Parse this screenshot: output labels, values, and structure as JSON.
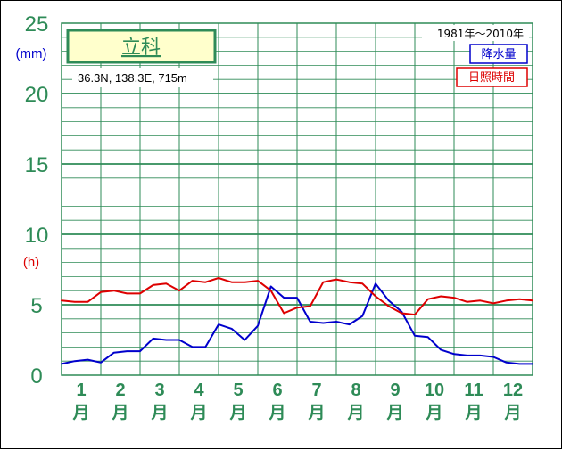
{
  "chart_data": {
    "type": "line",
    "title": "立科",
    "location": "36.3N,  138.3E,  715m",
    "period": "1981年〜2010年",
    "y_ticks": [
      "0",
      "5",
      "10",
      "15",
      "20",
      "25"
    ],
    "y_unit_precip": "(mm)",
    "y_unit_sun": "(h)",
    "ylim": [
      0,
      25
    ],
    "months": [
      {
        "num": "1",
        "kanji": "月"
      },
      {
        "num": "2",
        "kanji": "月"
      },
      {
        "num": "3",
        "kanji": "月"
      },
      {
        "num": "4",
        "kanji": "月"
      },
      {
        "num": "5",
        "kanji": "月"
      },
      {
        "num": "6",
        "kanji": "月"
      },
      {
        "num": "7",
        "kanji": "月"
      },
      {
        "num": "8",
        "kanji": "月"
      },
      {
        "num": "9",
        "kanji": "月"
      },
      {
        "num": "10",
        "kanji": "月"
      },
      {
        "num": "11",
        "kanji": "月"
      },
      {
        "num": "12",
        "kanji": "月"
      }
    ],
    "x": [
      0,
      1,
      2,
      3,
      4,
      5,
      6,
      7,
      8,
      9,
      10,
      11,
      12,
      13,
      14,
      15,
      16,
      17,
      18,
      19,
      20,
      21,
      22,
      23,
      24,
      25,
      26,
      27,
      28,
      29,
      30,
      31,
      32,
      33,
      34,
      35,
      36
    ],
    "series": [
      {
        "name": "降水量",
        "color": "#0000cc",
        "values": [
          0.8,
          1.0,
          1.1,
          0.9,
          1.6,
          1.7,
          1.7,
          2.6,
          2.5,
          2.5,
          2.0,
          2.0,
          3.6,
          3.3,
          2.5,
          3.5,
          6.3,
          5.5,
          5.5,
          3.8,
          3.7,
          3.8,
          3.6,
          4.2,
          6.5,
          5.3,
          4.5,
          2.8,
          2.7,
          1.8,
          1.5,
          1.4,
          1.4,
          1.3,
          0.9,
          0.8,
          0.8
        ]
      },
      {
        "name": "日照時間",
        "color": "#dd0000",
        "values": [
          5.3,
          5.2,
          5.2,
          5.9,
          6.0,
          5.8,
          5.8,
          6.4,
          6.5,
          6.0,
          6.7,
          6.6,
          6.9,
          6.6,
          6.6,
          6.7,
          6.0,
          4.4,
          4.8,
          4.9,
          6.6,
          6.8,
          6.6,
          6.5,
          5.6,
          4.9,
          4.4,
          4.3,
          5.4,
          5.6,
          5.5,
          5.2,
          5.3,
          5.1,
          5.3,
          5.4,
          5.3
        ]
      }
    ]
  }
}
